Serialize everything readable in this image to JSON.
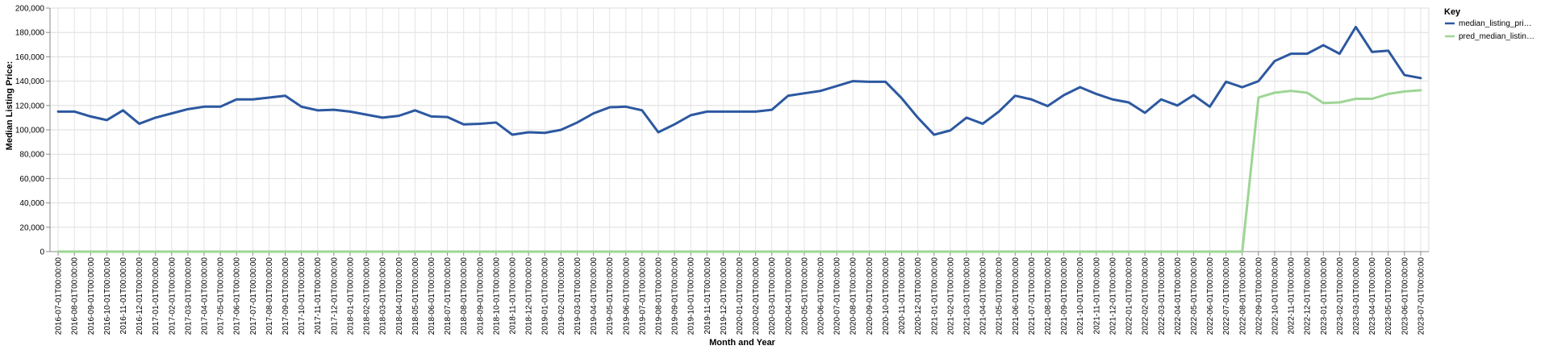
{
  "chart_data": {
    "type": "line",
    "xlabel": "Month and Year",
    "ylabel": "Median Listing Price:",
    "ylim": [
      0,
      200000
    ],
    "y_ticks": [
      "0",
      "20,000",
      "40,000",
      "60,000",
      "80,000",
      "100,000",
      "120,000",
      "140,000",
      "160,000",
      "180,000",
      "200,000"
    ],
    "grid": true,
    "legend": {
      "title": "Key",
      "placement": "top-right"
    },
    "x": [
      "2016-07-01T00:00:00",
      "2016-08-01T00:00:00",
      "2016-09-01T00:00:00",
      "2016-10-01T00:00:00",
      "2016-11-01T00:00:00",
      "2016-12-01T00:00:00",
      "2017-01-01T00:00:00",
      "2017-02-01T00:00:00",
      "2017-03-01T00:00:00",
      "2017-04-01T00:00:00",
      "2017-05-01T00:00:00",
      "2017-06-01T00:00:00",
      "2017-07-01T00:00:00",
      "2017-08-01T00:00:00",
      "2017-09-01T00:00:00",
      "2017-10-01T00:00:00",
      "2017-11-01T00:00:00",
      "2017-12-01T00:00:00",
      "2018-01-01T00:00:00",
      "2018-02-01T00:00:00",
      "2018-03-01T00:00:00",
      "2018-04-01T00:00:00",
      "2018-05-01T00:00:00",
      "2018-06-01T00:00:00",
      "2018-07-01T00:00:00",
      "2018-08-01T00:00:00",
      "2018-09-01T00:00:00",
      "2018-10-01T00:00:00",
      "2018-11-01T00:00:00",
      "2018-12-01T00:00:00",
      "2019-01-01T00:00:00",
      "2019-02-01T00:00:00",
      "2019-03-01T00:00:00",
      "2019-04-01T00:00:00",
      "2019-05-01T00:00:00",
      "2019-06-01T00:00:00",
      "2019-07-01T00:00:00",
      "2019-08-01T00:00:00",
      "2019-09-01T00:00:00",
      "2019-10-01T00:00:00",
      "2019-11-01T00:00:00",
      "2019-12-01T00:00:00",
      "2020-01-01T00:00:00",
      "2020-02-01T00:00:00",
      "2020-03-01T00:00:00",
      "2020-04-01T00:00:00",
      "2020-05-01T00:00:00",
      "2020-06-01T00:00:00",
      "2020-07-01T00:00:00",
      "2020-08-01T00:00:00",
      "2020-09-01T00:00:00",
      "2020-10-01T00:00:00",
      "2020-11-01T00:00:00",
      "2020-12-01T00:00:00",
      "2021-01-01T00:00:00",
      "2021-02-01T00:00:00",
      "2021-03-01T00:00:00",
      "2021-04-01T00:00:00",
      "2021-05-01T00:00:00",
      "2021-06-01T00:00:00",
      "2021-07-01T00:00:00",
      "2021-08-01T00:00:00",
      "2021-09-01T00:00:00",
      "2021-10-01T00:00:00",
      "2021-11-01T00:00:00",
      "2021-12-01T00:00:00",
      "2022-01-01T00:00:00",
      "2022-02-01T00:00:00",
      "2022-03-01T00:00:00",
      "2022-04-01T00:00:00",
      "2022-05-01T00:00:00",
      "2022-06-01T00:00:00",
      "2022-07-01T00:00:00",
      "2022-08-01T00:00:00",
      "2022-09-01T00:00:00",
      "2022-10-01T00:00:00",
      "2022-11-01T00:00:00",
      "2022-12-01T00:00:00",
      "2023-01-01T00:00:00",
      "2023-02-01T00:00:00",
      "2023-03-01T00:00:00",
      "2023-04-01T00:00:00",
      "2023-05-01T00:00:00",
      "2023-06-01T00:00:00",
      "2023-07-01T00:00:00"
    ],
    "series": [
      {
        "name": "median_listing_pri…",
        "color": "#2c58a0",
        "values": [
          115000,
          115000,
          111000,
          108000,
          116000,
          105000,
          110000,
          113500,
          117000,
          119000,
          119000,
          125000,
          125000,
          126500,
          128000,
          119000,
          116000,
          116500,
          115000,
          112500,
          110000,
          111500,
          116000,
          111000,
          110500,
          104500,
          105000,
          106000,
          96000,
          98000,
          97500,
          100000,
          106000,
          113500,
          118500,
          119000,
          116000,
          98000,
          104500,
          112000,
          115000,
          115000,
          115000,
          115000,
          116500,
          128000,
          130000,
          132000,
          136000,
          140000,
          139500,
          139500,
          126000,
          110000,
          96000,
          99500,
          110000,
          105000,
          115000,
          128000,
          125000,
          119500,
          128500,
          135000,
          129500,
          125000,
          122500,
          114000,
          125000,
          120000,
          128500,
          119000,
          139500,
          135000,
          140000,
          156500,
          162500,
          162500,
          169500,
          162500,
          184500,
          164000,
          165000,
          145000,
          142500
        ]
      },
      {
        "name": "pred_median_listin…",
        "color": "#9ed595",
        "values": [
          0,
          0,
          0,
          0,
          0,
          0,
          0,
          0,
          0,
          0,
          0,
          0,
          0,
          0,
          0,
          0,
          0,
          0,
          0,
          0,
          0,
          0,
          0,
          0,
          0,
          0,
          0,
          0,
          0,
          0,
          0,
          0,
          0,
          0,
          0,
          0,
          0,
          0,
          0,
          0,
          0,
          0,
          0,
          0,
          0,
          0,
          0,
          0,
          0,
          0,
          0,
          0,
          0,
          0,
          0,
          0,
          0,
          0,
          0,
          0,
          0,
          0,
          0,
          0,
          0,
          0,
          0,
          0,
          0,
          0,
          0,
          0,
          0,
          0,
          126500,
          130500,
          132000,
          130500,
          122000,
          122500,
          125500,
          125500,
          129500,
          131500,
          132500
        ]
      }
    ]
  }
}
